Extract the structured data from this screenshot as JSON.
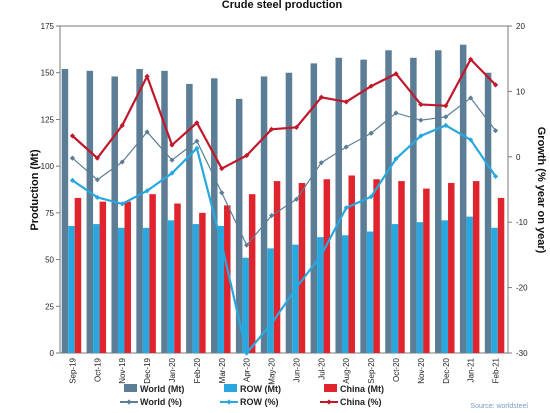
{
  "chart_data": {
    "type": "bar",
    "title": "Crude steel production",
    "ylabel": "Production (Mt)",
    "y2label": "Growth (% year on year)",
    "ylim": [
      0,
      175
    ],
    "y2lim": [
      -30,
      20
    ],
    "yticks": [
      "0",
      "25",
      "50",
      "75",
      "100",
      "125",
      "150",
      "175"
    ],
    "y2ticks": [
      "-30",
      "-20",
      "-10",
      "0",
      "10",
      "20"
    ],
    "categories": [
      "Sep-19",
      "Oct-19",
      "Nov-19",
      "Dec-19",
      "Jan-20",
      "Feb-20",
      "Mar-20",
      "Apr-20",
      "May-20",
      "Jun-20",
      "Jul-20",
      "Aug-20",
      "Sep-20",
      "Oct-20",
      "Nov-20",
      "Dec-20",
      "Jan-21",
      "Feb-21"
    ],
    "bar_series": [
      {
        "name": "World (Mt)",
        "color": "#5b7e96",
        "values": [
          152,
          151,
          148,
          152,
          151,
          144,
          147,
          136,
          148,
          150,
          155,
          158,
          157,
          162,
          158,
          162,
          165,
          150
        ]
      },
      {
        "name": "ROW (Mt)",
        "color": "#29a8e0",
        "values": [
          68,
          69,
          67,
          67,
          71,
          69,
          68,
          51,
          56,
          58,
          62,
          63,
          65,
          69,
          70,
          71,
          73,
          67
        ]
      },
      {
        "name": "China (Mt)",
        "color": "#e0242e",
        "values": [
          83,
          81,
          81,
          85,
          80,
          75,
          79,
          85,
          92,
          91,
          93,
          95,
          93,
          92,
          88,
          91,
          92,
          83
        ]
      }
    ],
    "line_series": [
      {
        "name": "World (%)",
        "color": "#5b7e96",
        "marker": "diamond",
        "values": [
          -0.2,
          -3.5,
          -0.8,
          3.8,
          -0.5,
          2.4,
          -5.5,
          -13.5,
          -9,
          -6.5,
          -0.9,
          1.5,
          3.6,
          6.7,
          5.6,
          6.1,
          9.0,
          4
        ]
      },
      {
        "name": "ROW (%)",
        "color": "#29a8e0",
        "marker": "diamond",
        "values": [
          -3.6,
          -6.2,
          -7.2,
          -5.2,
          -2.5,
          1.3,
          -13.4,
          -30,
          -25.5,
          -20,
          -15,
          -7.8,
          -6.1,
          -0.3,
          3.2,
          4.8,
          2.6,
          -3.0
        ]
      },
      {
        "name": "China (%)",
        "color": "#c0182a",
        "marker": "diamond",
        "values": [
          3.2,
          -0.2,
          4.8,
          12.3,
          1.8,
          5.2,
          -1.8,
          0.2,
          4.2,
          4.5,
          9.1,
          8.4,
          10.8,
          12.7,
          8.0,
          7.8,
          14.9,
          11.0
        ]
      }
    ],
    "grid": false,
    "legend_position": "bottom"
  },
  "source": "Source: worldsteel"
}
